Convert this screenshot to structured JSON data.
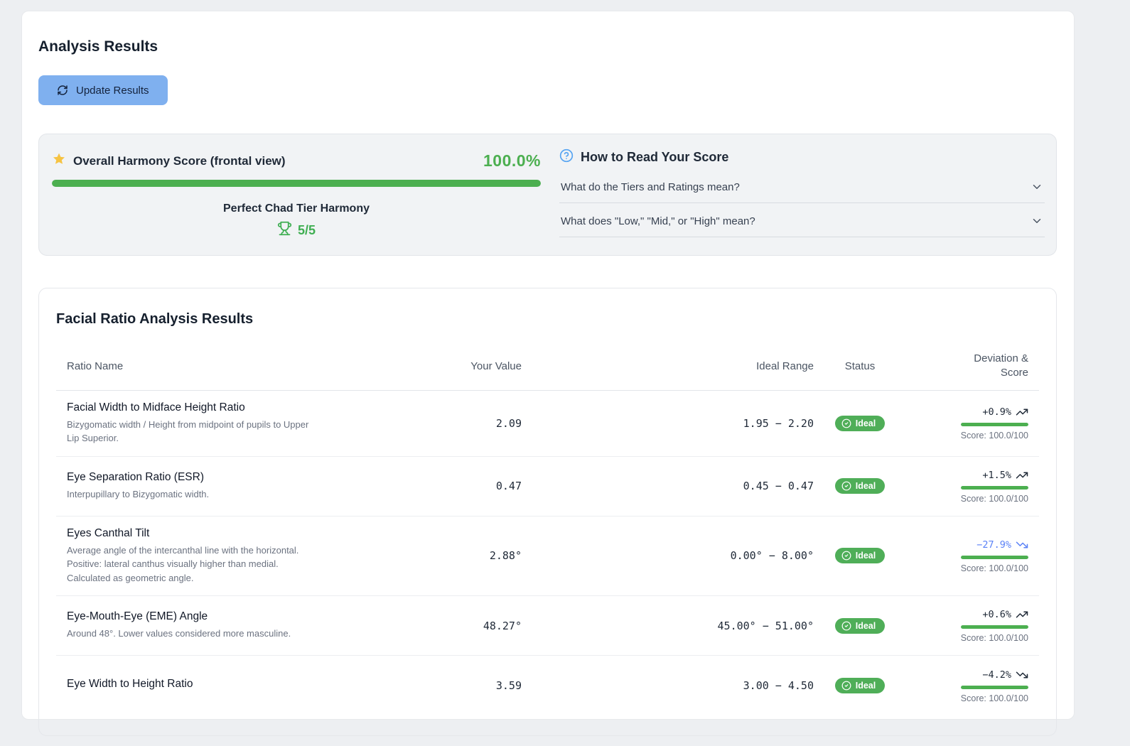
{
  "page": {
    "title": "Analysis Results",
    "update_button": "Update Results"
  },
  "harmony": {
    "title": "Overall Harmony Score (frontal view)",
    "score": "100.0%",
    "score_value": 100,
    "tier_label": "Perfect Chad Tier Harmony",
    "tier_score": "5/5",
    "help": {
      "title": "How to Read Your Score",
      "items": [
        "What do the Tiers and Ratings mean?",
        "What does \"Low,\" \"Mid,\" or \"High\" mean?"
      ]
    }
  },
  "ratio_table": {
    "title": "Facial Ratio Analysis Results",
    "columns": [
      "Ratio Name",
      "Your Value",
      "Ideal Range",
      "Status",
      "Deviation & Score"
    ],
    "rows": [
      {
        "name": "Facial Width to Midface Height Ratio",
        "description": "Bizygomatic width / Height from midpoint of pupils to Upper Lip Superior.",
        "value": "2.09",
        "ideal_range": "1.95 − 2.20",
        "status": "Ideal",
        "deviation": "+0.9%",
        "trend": "up",
        "deviation_color": "#1f2937",
        "score": "Score: 100.0/100",
        "score_pct": 100
      },
      {
        "name": "Eye Separation Ratio (ESR)",
        "description": "Interpupillary to Bizygomatic width.",
        "value": "0.47",
        "ideal_range": "0.45 − 0.47",
        "status": "Ideal",
        "deviation": "+1.5%",
        "trend": "up",
        "deviation_color": "#1f2937",
        "score": "Score: 100.0/100",
        "score_pct": 100
      },
      {
        "name": "Eyes Canthal Tilt",
        "description": "Average angle of the intercanthal line with the horizontal. Positive: lateral canthus visually higher than medial. Calculated as geometric angle.",
        "value": "2.88°",
        "ideal_range": "0.00° − 8.00°",
        "status": "Ideal",
        "deviation": "−27.9%",
        "trend": "down",
        "deviation_color": "#5b82f7",
        "score": "Score: 100.0/100",
        "score_pct": 100
      },
      {
        "name": "Eye-Mouth-Eye (EME) Angle",
        "description": "Around 48°. Lower values considered more masculine.",
        "value": "48.27°",
        "ideal_range": "45.00° − 51.00°",
        "status": "Ideal",
        "deviation": "+0.6%",
        "trend": "up",
        "deviation_color": "#1f2937",
        "score": "Score: 100.0/100",
        "score_pct": 100
      },
      {
        "name": "Eye Width to Height Ratio",
        "value": "3.59",
        "ideal_range": "3.00 − 4.50",
        "status": "Ideal",
        "deviation": "−4.2%",
        "trend": "down",
        "deviation_color": "#1f2937",
        "score": "Score: 100.0/100",
        "score_pct": 100
      }
    ]
  },
  "colors": {
    "accent_green": "#4caf50",
    "pill_green": "#4fae58",
    "button_blue": "#7fb0ef",
    "deviation_blue": "#5b82f7",
    "star_yellow": "#f6c343",
    "help_blue": "#56a4f2"
  }
}
